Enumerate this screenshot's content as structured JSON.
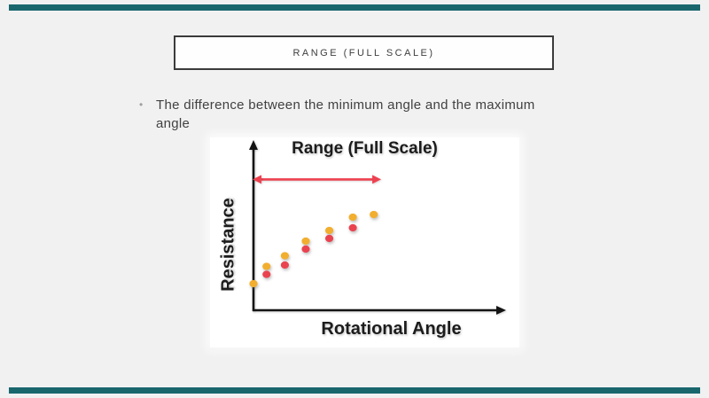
{
  "slide": {
    "background_color": "#f1f1f2",
    "accent_bar_color": "#19676d",
    "title_box": {
      "label": "RANGE (FULL SCALE)"
    },
    "bullet_item": {
      "marker": "•",
      "text": "The difference between the minimum angle and the maximum angle"
    }
  },
  "chart_data": {
    "type": "scatter",
    "title": "Range (Full Scale)",
    "xlabel": "Rotational Angle",
    "ylabel": "Resistance",
    "axis_color": "#141414",
    "axes_have_arrowheads": true,
    "ticks": false,
    "grid": false,
    "xlim": [
      0,
      9.6
    ],
    "ylim": [
      0,
      6.3
    ],
    "series": [
      {
        "name": "upper-yellow",
        "color": "#f2ae2e",
        "x": [
          0,
          0.5,
          1.2,
          2.0,
          2.9,
          3.8,
          4.6
        ],
        "y": [
          1.0,
          1.65,
          2.05,
          2.6,
          3.0,
          3.5,
          3.6
        ]
      },
      {
        "name": "lower-red",
        "color": "#ea4350",
        "x": [
          0.5,
          1.2,
          2.0,
          2.9,
          3.8
        ],
        "y": [
          1.35,
          1.7,
          2.3,
          2.7,
          3.1
        ]
      }
    ],
    "annotation": {
      "name": "full-scale-range-arrow",
      "type": "double_arrow",
      "color": "#ee4150",
      "x_start": 0,
      "x_end": 4.85,
      "y": 4.92
    }
  }
}
